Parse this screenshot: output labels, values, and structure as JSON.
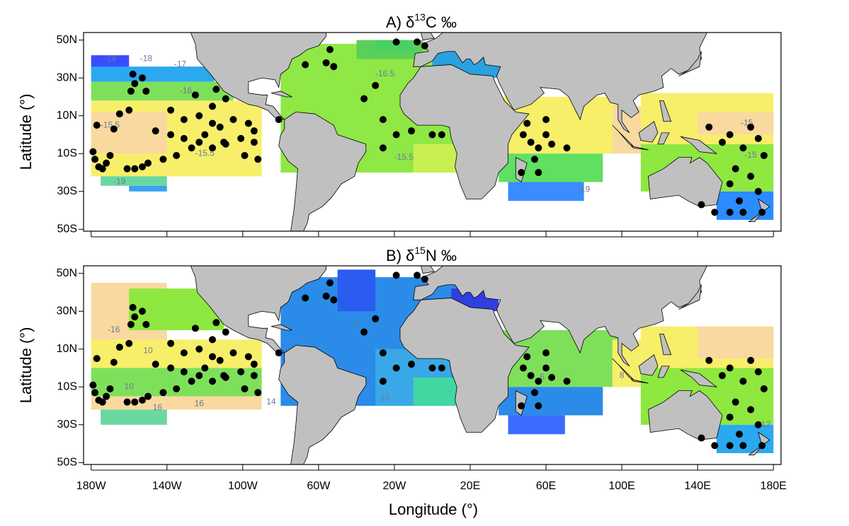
{
  "figure": {
    "y_label": "Latitude (°)",
    "x_label": "Longitude (°)",
    "xlim": [
      -184,
      184
    ],
    "ylim": [
      -51,
      54
    ],
    "xticks": [
      {
        "value": -180,
        "label": "180W"
      },
      {
        "value": -140,
        "label": "140W"
      },
      {
        "value": -100,
        "label": "100W"
      },
      {
        "value": -60,
        "label": "60W"
      },
      {
        "value": -20,
        "label": "20W"
      },
      {
        "value": 20,
        "label": "20E"
      },
      {
        "value": 60,
        "label": "60E"
      },
      {
        "value": 100,
        "label": "100E"
      },
      {
        "value": 140,
        "label": "140E"
      },
      {
        "value": 180,
        "label": "180E"
      }
    ],
    "yticks": [
      {
        "value": 50,
        "label": "50N"
      },
      {
        "value": 30,
        "label": "30N"
      },
      {
        "value": 10,
        "label": "10N"
      },
      {
        "value": -10,
        "label": "10S"
      },
      {
        "value": -30,
        "label": "30S"
      },
      {
        "value": -50,
        "label": "50S"
      }
    ]
  },
  "panels": [
    {
      "title": {
        "prefix": "A)  δ",
        "superscript": "13",
        "suffix": "C ‰"
      },
      "contour_labels": [
        "-19",
        "-18",
        "-17",
        "-16",
        "-16.5",
        "-15.5",
        "-15.5",
        "-15.5",
        "-19",
        "-19",
        "-15",
        "-15"
      ]
    },
    {
      "title": {
        "prefix": "B)  δ",
        "superscript": "15",
        "suffix": "N ‰"
      },
      "contour_labels": [
        "-16",
        "10",
        "10",
        "16",
        "16",
        "14",
        "8",
        "10",
        "6",
        "8",
        "12"
      ]
    }
  ],
  "sites": {
    "lon": [
      -178,
      -176,
      -179,
      -172,
      -174,
      -170,
      -177,
      -168,
      -165,
      -158,
      -157,
      -159,
      -153,
      -151,
      -160,
      -146,
      -138,
      -131,
      -123,
      -116,
      -109,
      -101,
      -94,
      -131,
      -123,
      -116,
      -109,
      -116,
      -135,
      -142,
      -150,
      -153,
      -157,
      -161,
      -127,
      -120,
      -112,
      -105,
      -97,
      -94,
      -99,
      -92,
      -81,
      -138,
      -125,
      -114,
      -110,
      -56,
      -67,
      -54,
      -52,
      -36,
      -30,
      -26,
      -19,
      -8,
      -4,
      -19,
      -11,
      0,
      5,
      -26,
      48,
      52,
      56,
      60,
      50,
      60,
      54,
      63,
      71,
      56,
      47,
      146,
      157,
      168,
      172,
      164,
      175,
      160,
      168,
      172,
      157,
      162,
      164,
      157,
      149,
      142,
      174,
      153
    ],
    "lat": [
      -13,
      -17,
      -9,
      -15,
      -18,
      -11,
      5,
      3,
      11,
      32,
      27,
      23,
      30,
      23,
      13,
      2,
      0,
      -2,
      -4,
      -7,
      -5,
      -2,
      -4,
      8,
      10,
      15,
      19,
      6,
      -11,
      -13,
      -15,
      -17,
      -18,
      -18,
      -7,
      0,
      4,
      8,
      6,
      2,
      -11,
      -13,
      8,
      13,
      21,
      24,
      -4,
      38,
      37,
      45,
      36,
      19,
      26,
      8,
      49,
      49,
      47,
      0,
      2,
      0,
      0,
      -7,
      0,
      -4,
      -7,
      0,
      6,
      8,
      -13,
      -5,
      -7,
      -20,
      -20,
      4,
      0,
      4,
      -2,
      -7,
      -11,
      -18,
      -22,
      -30,
      -26,
      -35,
      -41,
      -41,
      -41,
      -37,
      -41,
      -4
    ]
  }
}
